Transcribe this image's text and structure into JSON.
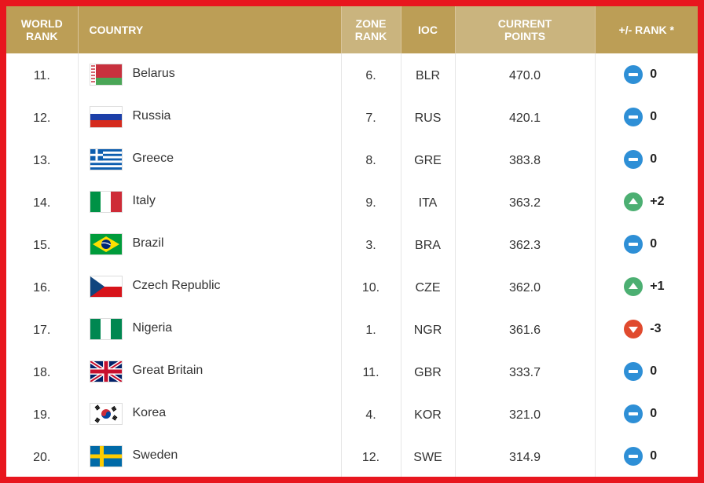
{
  "header": {
    "world_rank": "WORLD\nRANK",
    "country": "COUNTRY",
    "zone_rank": "ZONE\nRANK",
    "ioc": "IOC",
    "current_points": "CURRENT\nPOINTS",
    "rank_change": "+/- RANK *"
  },
  "colors": {
    "page_border": "#e8161e",
    "header_gold": "#bc9e56",
    "header_gold_light": "#cab47e",
    "change_same": "#2e8fd6",
    "change_up": "#4caf72",
    "change_down": "#e04a2e"
  },
  "rows": [
    {
      "world_rank": "11.",
      "country": "Belarus",
      "flag": "flag-belarus",
      "zone_rank": "6.",
      "ioc": "BLR",
      "points": "470.0",
      "change": "0",
      "change_type": "same"
    },
    {
      "world_rank": "12.",
      "country": "Russia",
      "flag": "flag-russia",
      "zone_rank": "7.",
      "ioc": "RUS",
      "points": "420.1",
      "change": "0",
      "change_type": "same"
    },
    {
      "world_rank": "13.",
      "country": "Greece",
      "flag": "flag-greece",
      "zone_rank": "8.",
      "ioc": "GRE",
      "points": "383.8",
      "change": "0",
      "change_type": "same"
    },
    {
      "world_rank": "14.",
      "country": "Italy",
      "flag": "flag-italy",
      "zone_rank": "9.",
      "ioc": "ITA",
      "points": "363.2",
      "change": "+2",
      "change_type": "up"
    },
    {
      "world_rank": "15.",
      "country": "Brazil",
      "flag": "flag-brazil",
      "zone_rank": "3.",
      "ioc": "BRA",
      "points": "362.3",
      "change": "0",
      "change_type": "same"
    },
    {
      "world_rank": "16.",
      "country": "Czech Republic",
      "flag": "flag-czech-republic",
      "zone_rank": "10.",
      "ioc": "CZE",
      "points": "362.0",
      "change": "+1",
      "change_type": "up"
    },
    {
      "world_rank": "17.",
      "country": "Nigeria",
      "flag": "flag-nigeria",
      "zone_rank": "1.",
      "ioc": "NGR",
      "points": "361.6",
      "change": "-3",
      "change_type": "down"
    },
    {
      "world_rank": "18.",
      "country": "Great Britain",
      "flag": "flag-great-britain",
      "zone_rank": "11.",
      "ioc": "GBR",
      "points": "333.7",
      "change": "0",
      "change_type": "same"
    },
    {
      "world_rank": "19.",
      "country": "Korea",
      "flag": "flag-korea",
      "zone_rank": "4.",
      "ioc": "KOR",
      "points": "321.0",
      "change": "0",
      "change_type": "same"
    },
    {
      "world_rank": "20.",
      "country": "Sweden",
      "flag": "flag-sweden",
      "zone_rank": "12.",
      "ioc": "SWE",
      "points": "314.9",
      "change": "0",
      "change_type": "same"
    }
  ]
}
